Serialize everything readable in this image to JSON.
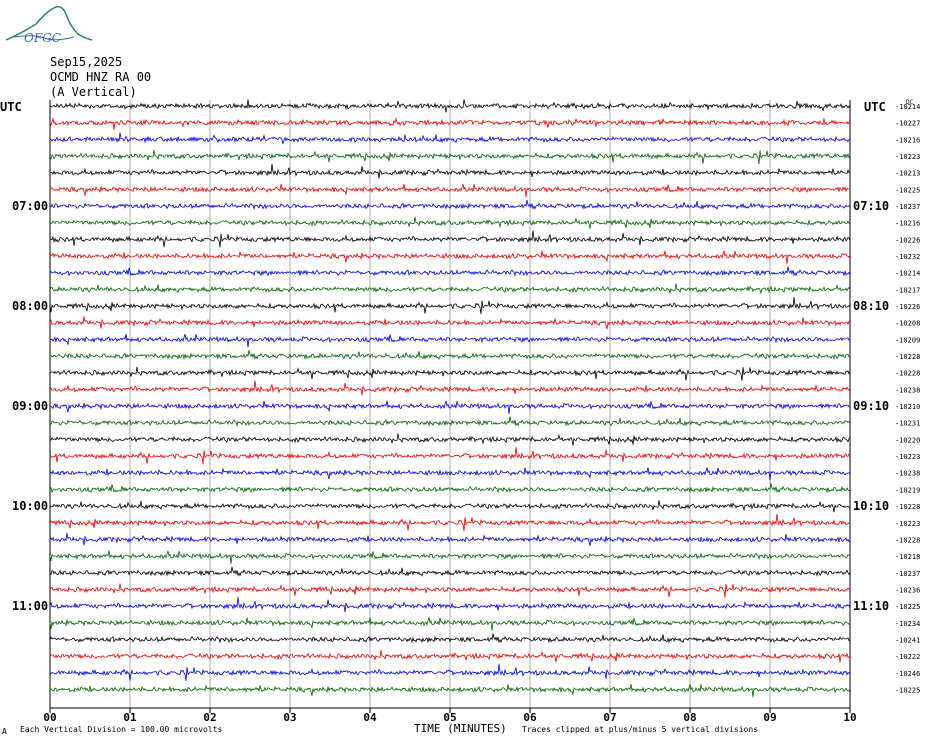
{
  "header": {
    "logo_text": "OFGC",
    "date": "Sep15,2025",
    "station": "OCMD HNZ RA 00",
    "component": "(A Vertical)"
  },
  "left_axis_label": "UTC",
  "right_axis_label": "UTC",
  "right_corner_label": "DC",
  "footer": {
    "scale_prefix": "A",
    "scale_text": "Each Vertical Division =  100.00 microvolts",
    "clip_text": "Traces clipped at plus/minus 5 vertical divisions"
  },
  "colors": {
    "cycle": [
      "#000000",
      "#ee0000",
      "#0000ee",
      "#006600"
    ],
    "grid": "#888888"
  },
  "chart_data": {
    "type": "line",
    "title": "",
    "xlabel": "TIME (MINUTES)",
    "ylabel": "UTC",
    "x_ticks": [
      "00",
      "01",
      "02",
      "03",
      "04",
      "05",
      "06",
      "07",
      "08",
      "09",
      "10"
    ],
    "xlim": [
      0,
      10
    ],
    "left_time_labels": [
      {
        "trace": 6,
        "text": "07:00"
      },
      {
        "trace": 12,
        "text": "08:00"
      },
      {
        "trace": 18,
        "text": "09:00"
      },
      {
        "trace": 24,
        "text": "10:00"
      },
      {
        "trace": 30,
        "text": "11:00"
      }
    ],
    "right_time_labels": [
      {
        "trace": 6,
        "text": "07:10"
      },
      {
        "trace": 12,
        "text": "08:10"
      },
      {
        "trace": 18,
        "text": "09:10"
      },
      {
        "trace": 24,
        "text": "10:10"
      },
      {
        "trace": 30,
        "text": "11:10"
      }
    ],
    "trace_offsets": [
      "-10214",
      "-10227",
      "-10216",
      "-10223",
      "-10213",
      "-10225",
      "-10237",
      "-10216",
      "-10226",
      "-10232",
      "-10214",
      "-10217",
      "-10226",
      "-10208",
      "-10209",
      "-10228",
      "-10228",
      "-10238",
      "-10210",
      "-10231",
      "-10220",
      "-10223",
      "-10238",
      "-10219",
      "-10228",
      "-10223",
      "-10228",
      "-10218",
      "-10237",
      "-10236",
      "-10225",
      "-10234",
      "-10241",
      "-10222",
      "-10246",
      "-10225"
    ]
  }
}
